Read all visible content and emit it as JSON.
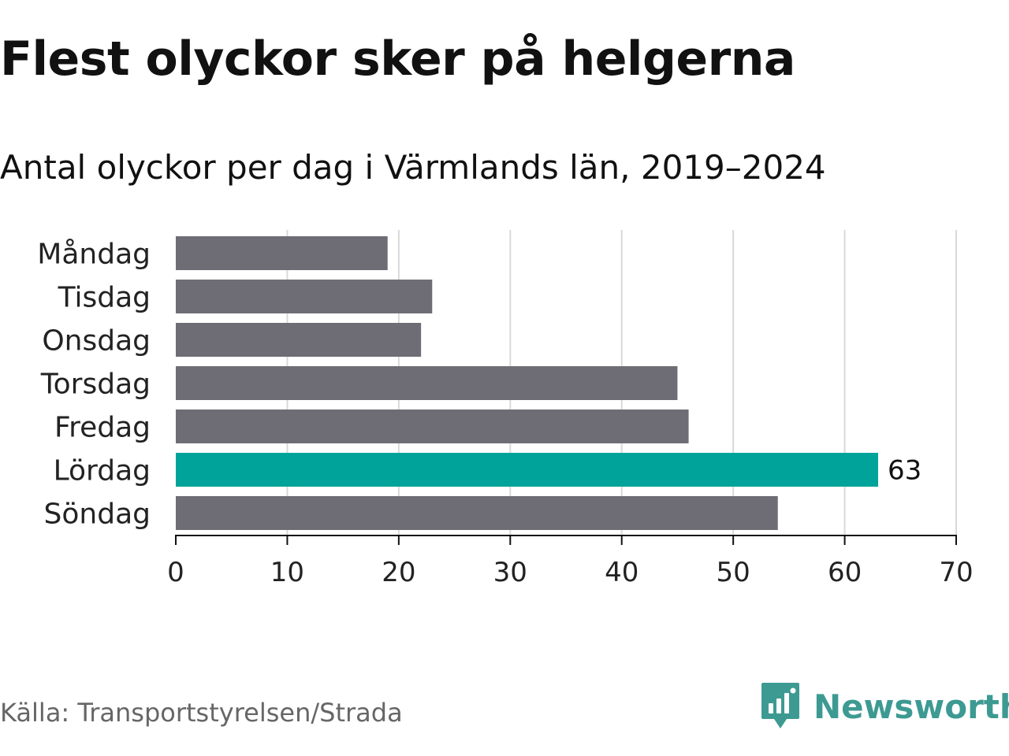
{
  "header": {
    "title": "Flest olyckor sker på helgerna",
    "subtitle": "Antal olyckor per dag i Värmlands län, 2019–2024"
  },
  "footer": {
    "source": "Källa: Transportstyrelsen/Strada",
    "brand_name": "Newsworthy",
    "brand_icon": "bar-chart-bubble-icon"
  },
  "colors": {
    "bar_default": "#6e6d75",
    "bar_highlight": "#00a39a",
    "grid": "#d9d9d9",
    "axis": "#111111",
    "text": "#222222",
    "brand": "#3d9a92"
  },
  "chart_data": {
    "type": "bar",
    "orientation": "horizontal",
    "categories": [
      "Måndag",
      "Tisdag",
      "Onsdag",
      "Torsdag",
      "Fredag",
      "Lördag",
      "Söndag"
    ],
    "values": [
      19,
      23,
      22,
      45,
      46,
      63,
      54
    ],
    "highlight_category": "Lördag",
    "data_labels": [
      {
        "category": "Lördag",
        "label": "63"
      }
    ],
    "xlim": [
      0,
      70
    ],
    "xticks": [
      "0",
      "10",
      "20",
      "30",
      "40",
      "50",
      "60",
      "70"
    ],
    "xtick_values": [
      0,
      10,
      20,
      30,
      40,
      50,
      60,
      70
    ],
    "grid": "vertical",
    "legend": "none"
  }
}
